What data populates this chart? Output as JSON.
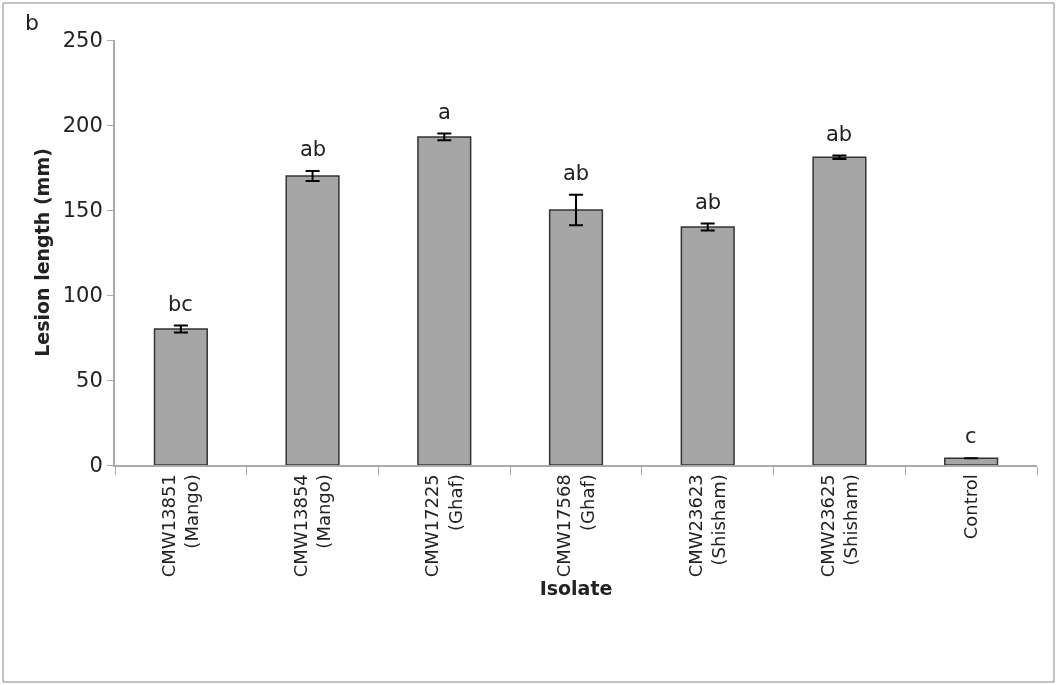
{
  "chart_data": {
    "type": "bar",
    "xlabel": "Isolate",
    "ylabel": "Lesion length (mm)",
    "categories": [
      "CMW13851 (Mango)",
      "CMW13854 (Mango)",
      "CMW17225 (Ghaf)",
      "CMW17568 (Ghaf)",
      "CMW23623 (Shisham)",
      "CMW23625 (Shisham)",
      "Control"
    ],
    "values": [
      80,
      170,
      193,
      150,
      140,
      181,
      4
    ],
    "errors": [
      2,
      3,
      2,
      9,
      2,
      1,
      null
    ],
    "color": "#a6a6a6",
    "ylim": [
      0,
      250
    ],
    "yticks": [
      0,
      50,
      100,
      150,
      200,
      250
    ],
    "legend": false,
    "annotations": [
      "b",
      {
        "text": "bc",
        "x": "CMW13851 (Mango)",
        "y": 82
      },
      {
        "text": "ab",
        "x": "CMW13854 (Mango)",
        "y": 173
      },
      {
        "text": "a",
        "x": "CMW17225 (Ghaf)",
        "y": 195
      },
      {
        "text": "ab",
        "x": "CMW17568 (Ghaf)",
        "y": 159
      },
      {
        "text": "ab",
        "x": "CMW23623 (Shisham)",
        "y": 142
      },
      {
        "text": "ab",
        "x": "CMW23625 (Shisham)",
        "y": 182
      },
      {
        "text": "c",
        "x": "Control",
        "y": 4
      }
    ]
  }
}
